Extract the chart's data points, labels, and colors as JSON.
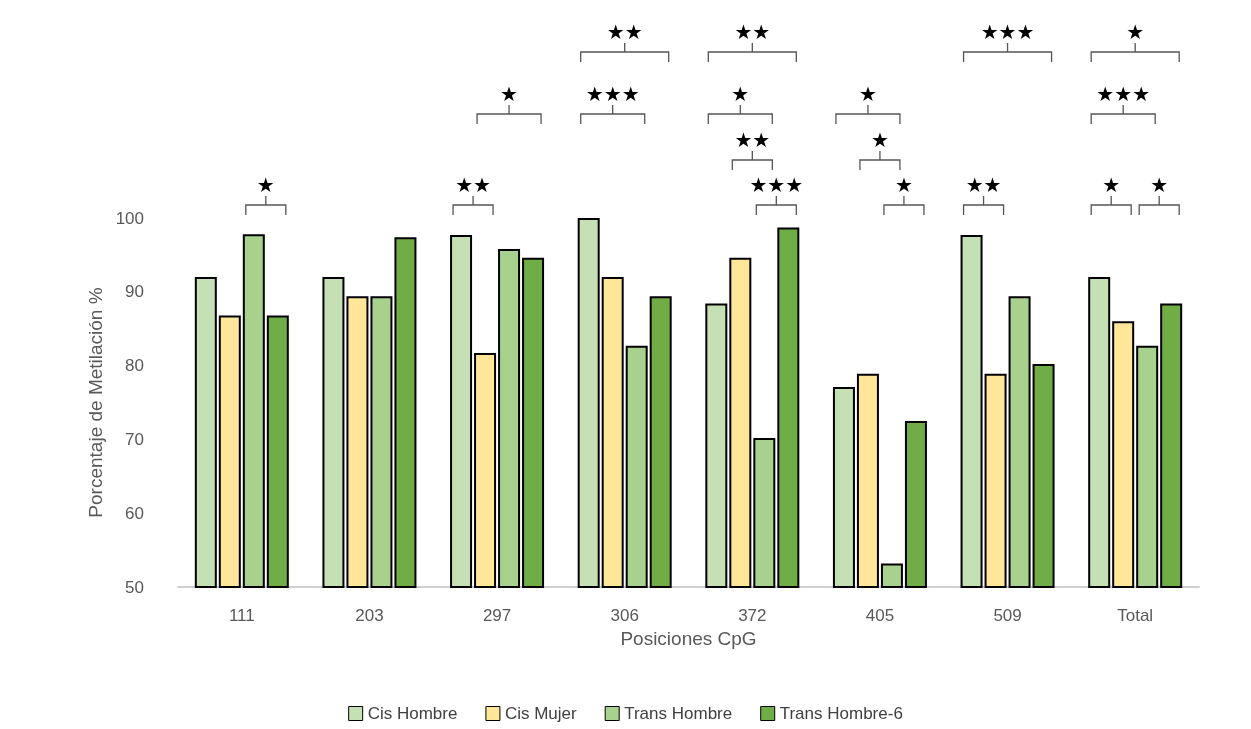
{
  "chart_data": {
    "type": "bar",
    "categories": [
      "111",
      "203",
      "297",
      "306",
      "372",
      "405",
      "509",
      "Total"
    ],
    "series": [
      {
        "name": "Cis Hombre",
        "color": "#c5e0b4",
        "values": [
          92,
          92,
          97.7,
          100,
          88.4,
          77.1,
          97.7,
          92
        ]
      },
      {
        "name": "Cis Mujer",
        "color": "#ffe699",
        "values": [
          86.8,
          89.4,
          81.7,
          92,
          94.6,
          78.9,
          78.9,
          86
        ]
      },
      {
        "name": "Trans Hombre",
        "color": "#a9d18e",
        "values": [
          97.8,
          89.4,
          95.8,
          82.7,
          70.2,
          53.2,
          89.4,
          82.7
        ]
      },
      {
        "name": "Trans Hombre-6",
        "color": "#70ad47",
        "values": [
          86.8,
          97.4,
          94.6,
          89.4,
          98.7,
          72.5,
          80.2,
          88.4
        ]
      }
    ],
    "xlabel": "Posiciones CpG",
    "ylabel": "Porcentaje de Metilación %",
    "ylim": [
      50,
      100
    ],
    "yticks": [
      50,
      60,
      70,
      80,
      90,
      100
    ],
    "grid": false,
    "legend": "bottom",
    "annotations": [
      "★",
      "★★",
      "★",
      "★★★",
      "★★",
      "★★",
      "★",
      "★★",
      "★★★",
      "★",
      "★",
      "★",
      "★★★",
      "★★",
      "★",
      "★★★",
      "★",
      "★"
    ]
  }
}
